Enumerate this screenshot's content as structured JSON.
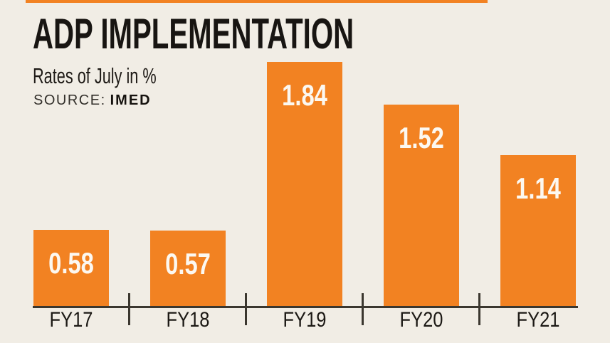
{
  "page": {
    "background_color": "#F1EDE5",
    "accent_color": "#F28222"
  },
  "header": {
    "title": "ADP IMPLEMENTATION",
    "subtitle": "Rates of July in %",
    "source_label": "SOURCE:",
    "source_value": "IMED"
  },
  "chart_data": {
    "type": "bar",
    "title": "ADP IMPLEMENTATION",
    "subtitle": "Rates of July in %",
    "source": "IMED",
    "categories": [
      "FY17",
      "FY18",
      "FY19",
      "FY20",
      "FY21"
    ],
    "values": [
      0.58,
      0.57,
      1.84,
      1.52,
      1.14
    ],
    "value_labels": [
      "0.58",
      "0.57",
      "1.84",
      "1.52",
      "1.14"
    ],
    "xlabel": "",
    "ylabel": "",
    "ylim": [
      0,
      2
    ],
    "grid": false,
    "legend": false,
    "value_label_position": "inside-top",
    "bar_color": "#F28222",
    "value_label_color": "#FCF8F1",
    "axis_color": "#3B372F",
    "tick_marks": "between-categories"
  }
}
